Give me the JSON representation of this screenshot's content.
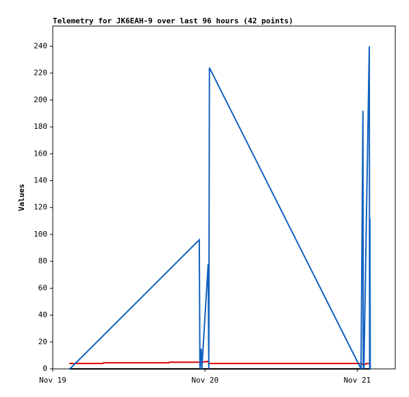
{
  "chart_data": {
    "type": "line",
    "title": "Telemetry for JK6EAH-9 over last 96 hours (42 points)",
    "y_label": "Values",
    "xlim": [
      0,
      54
    ],
    "xticks": [
      {
        "value": 0,
        "label": "Nov 19"
      },
      {
        "value": 24,
        "label": "Nov 20"
      },
      {
        "value": 48,
        "label": "Nov 21"
      }
    ],
    "ylim": [
      0,
      255
    ],
    "yticks": [
      0,
      20,
      40,
      60,
      80,
      100,
      120,
      140,
      160,
      180,
      200,
      220,
      240
    ],
    "series": [
      {
        "color": "#000000",
        "x": [
          2.6,
          50.05
        ],
        "values": [
          0,
          0
        ]
      },
      {
        "color": "#dd0000",
        "x": [
          2.6,
          7.9,
          8.0,
          18.3,
          18.4,
          23.2,
          24.5,
          24.6,
          48.5,
          49.0,
          49.5,
          50.0
        ],
        "values": [
          4,
          4,
          4.5,
          4.5,
          5,
          5,
          5.5,
          4,
          4,
          3,
          4,
          4
        ]
      },
      {
        "color": "#1060c0",
        "x": [
          2.7,
          23.1,
          23.2,
          23.4,
          23.5,
          24.5,
          24.6,
          24.7,
          48.6,
          48.9,
          48.95,
          49.0,
          49.05,
          49.9,
          49.95,
          50.0,
          50.05
        ],
        "values": [
          0,
          96,
          0,
          15,
          0,
          78,
          0,
          224,
          0,
          192,
          0,
          17,
          0,
          240,
          0,
          112,
          0
        ]
      }
    ]
  }
}
